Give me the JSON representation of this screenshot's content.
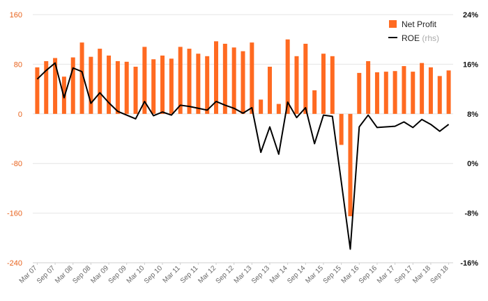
{
  "chart_data": {
    "type": "bar",
    "title": "",
    "xlabel": "",
    "ylabel": "",
    "ylim": [
      -240,
      160
    ],
    "y2lim": [
      -16,
      24
    ],
    "left_ticks": [
      "160",
      "80",
      "0",
      "-80",
      "-160",
      "-240"
    ],
    "right_ticks": [
      "24%",
      "16%",
      "8%",
      "0%",
      "-8%",
      "-16%"
    ],
    "x_tick_labels": [
      "Mar 07",
      "Sep 07",
      "Mar 08",
      "Sep 08",
      "Mar 09",
      "Sep 09",
      "Mar 10",
      "Sep 10",
      "Mar 11",
      "Sep 11",
      "Mar 12",
      "Sep 12",
      "Mar 13",
      "Sep 13",
      "Mar 14",
      "Sep 14",
      "Mar 15",
      "Sep 15",
      "Mar 16",
      "Sep 16",
      "Mar 17",
      "Sep 17",
      "Mar 18",
      "Sep 18"
    ],
    "grid": true,
    "legend_position": "top-right",
    "series": [
      {
        "name": "Net Profit",
        "type": "bar",
        "axis": "left",
        "color": "#ff6a21",
        "values": [
          75,
          85,
          90,
          60,
          91,
          115,
          92,
          105,
          94,
          85,
          84,
          76,
          108,
          88,
          94,
          89,
          108,
          105,
          97,
          93,
          117,
          113,
          107,
          101,
          115,
          23,
          76,
          16,
          120,
          93,
          113,
          38,
          97,
          93,
          -50,
          -165,
          66,
          85,
          67,
          68,
          69,
          77,
          68,
          82,
          75,
          61,
          70
        ]
      },
      {
        "name": "ROE",
        "name_suffix": "(rhs)",
        "type": "line",
        "axis": "right",
        "color": "#000000",
        "values": [
          13.6,
          15.0,
          16.2,
          10.6,
          15.4,
          14.8,
          9.7,
          11.4,
          9.8,
          8.4,
          7.8,
          7.2,
          10.0,
          7.7,
          8.3,
          7.8,
          9.4,
          9.2,
          8.9,
          8.6,
          10.0,
          9.4,
          8.9,
          8.1,
          9.0,
          1.8,
          5.9,
          1.5,
          9.9,
          7.4,
          9.0,
          3.2,
          7.8,
          7.6,
          -3.0,
          -13.8,
          5.9,
          7.8,
          5.8,
          5.9,
          6.0,
          6.7,
          5.8,
          7.1,
          6.3,
          5.2,
          6.3
        ]
      }
    ]
  }
}
